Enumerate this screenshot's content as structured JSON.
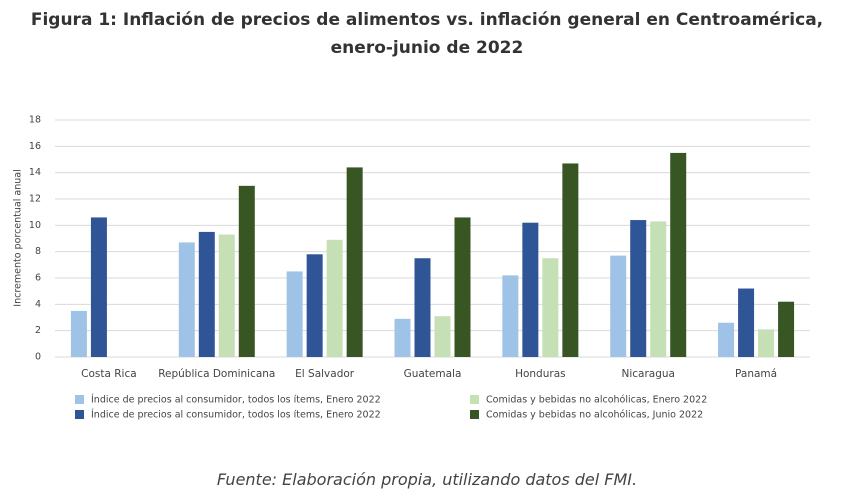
{
  "chart_data": {
    "type": "bar",
    "title": "Figura 1: Inflación de precios de alimentos vs. inflación general en Centroamérica, enero-junio de 2022",
    "y_label": "Incremento porcentual anual",
    "source": "Fuente: Elaboración propia, utilizando datos del FMI.",
    "categories": [
      "Costa Rica",
      "República Dominicana",
      "El Salvador",
      "Guatemala",
      "Honduras",
      "Nicaragua",
      "Panamá"
    ],
    "series": [
      {
        "name": "Índice de precios al consumidor, todos los ítems, Enero 2022",
        "color": "#9fc3e7",
        "values": [
          3.5,
          8.7,
          6.5,
          2.9,
          6.2,
          7.7,
          2.6
        ]
      },
      {
        "name": "Índice de precios al consumidor, todos los ítems, Enero 2022",
        "color": "#2f5597",
        "values": [
          10.6,
          9.5,
          7.8,
          7.5,
          10.2,
          10.4,
          5.2
        ]
      },
      {
        "name": "Comidas y bebidas no alcohólicas, Enero 2022",
        "color": "#c5e0b4",
        "values": [
          null,
          9.3,
          8.9,
          3.1,
          7.5,
          10.3,
          2.1
        ]
      },
      {
        "name": "Comidas y bebidas no alcohólicas,  Junio 2022",
        "color": "#375623",
        "values": [
          null,
          13.0,
          14.4,
          10.6,
          14.7,
          15.5,
          4.2
        ]
      }
    ],
    "ylim": [
      0,
      18
    ],
    "yticks": [
      0,
      2,
      4,
      6,
      8,
      10,
      12,
      14,
      16,
      18
    ],
    "grid": true
  }
}
